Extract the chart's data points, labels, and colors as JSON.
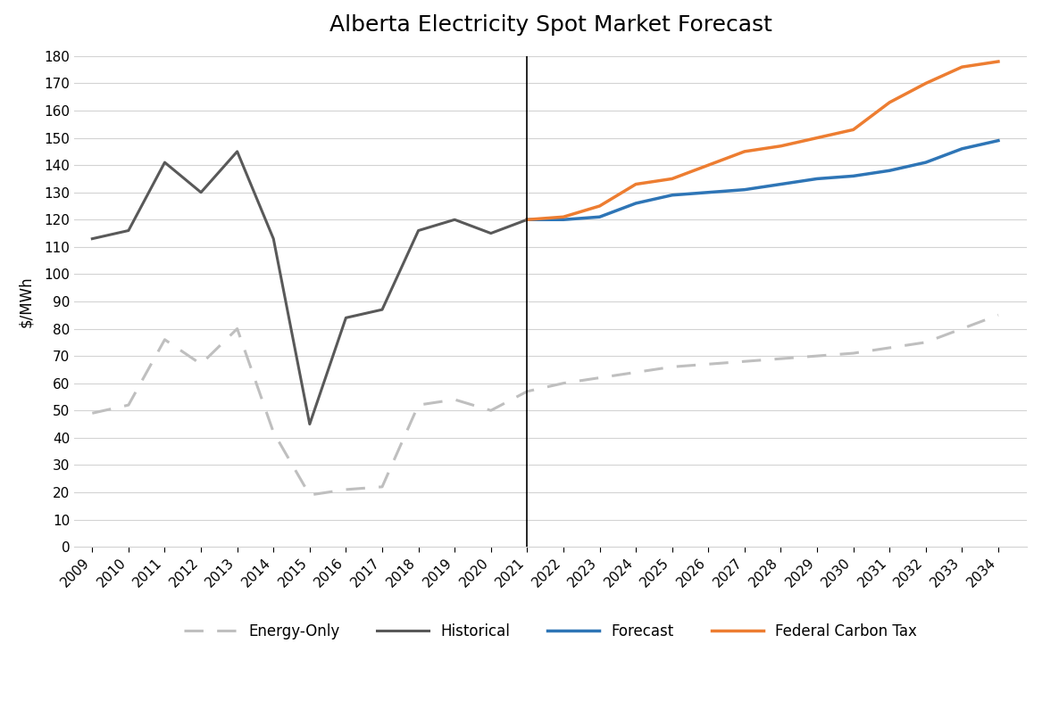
{
  "title": "Alberta Electricity Spot Market Forecast",
  "ylabel": "$/MWh",
  "ylim": [
    0,
    180
  ],
  "yticks": [
    0,
    10,
    20,
    30,
    40,
    50,
    60,
    70,
    80,
    90,
    100,
    110,
    120,
    130,
    140,
    150,
    160,
    170,
    180
  ],
  "vline_x": 2021,
  "historical_years": [
    2009,
    2010,
    2011,
    2012,
    2013,
    2014,
    2015,
    2016,
    2017,
    2018,
    2019,
    2020,
    2021
  ],
  "historical_values": [
    113,
    116,
    141,
    130,
    145,
    113,
    45,
    84,
    87,
    116,
    120,
    115,
    120
  ],
  "historical_color": "#595959",
  "energy_only_years": [
    2009,
    2010,
    2011,
    2012,
    2013,
    2014,
    2015,
    2016,
    2017,
    2018,
    2019,
    2020,
    2021,
    2022,
    2023,
    2024,
    2025,
    2026,
    2027,
    2028,
    2029,
    2030,
    2031,
    2032,
    2033,
    2034
  ],
  "energy_only_values": [
    49,
    52,
    76,
    67,
    80,
    42,
    19,
    21,
    22,
    52,
    54,
    50,
    57,
    60,
    62,
    64,
    66,
    67,
    68,
    69,
    70,
    71,
    73,
    75,
    80,
    85
  ],
  "energy_only_color": "#bfbfbf",
  "forecast_years": [
    2021,
    2022,
    2023,
    2024,
    2025,
    2026,
    2027,
    2028,
    2029,
    2030,
    2031,
    2032,
    2033,
    2034
  ],
  "forecast_values": [
    120,
    120,
    121,
    126,
    129,
    130,
    131,
    133,
    135,
    136,
    138,
    141,
    146,
    149
  ],
  "forecast_color": "#2E75B6",
  "carbon_tax_years": [
    2021,
    2022,
    2023,
    2024,
    2025,
    2026,
    2027,
    2028,
    2029,
    2030,
    2031,
    2032,
    2033,
    2034
  ],
  "carbon_tax_values": [
    120,
    121,
    125,
    133,
    135,
    140,
    145,
    147,
    150,
    153,
    163,
    170,
    176,
    178
  ],
  "carbon_tax_color": "#ED7D31",
  "legend_labels": [
    "Energy-Only",
    "Historical",
    "Forecast",
    "Federal Carbon Tax"
  ],
  "background_color": "#ffffff",
  "grid_color": "#d3d3d3",
  "title_fontsize": 18,
  "axis_fontsize": 12,
  "tick_fontsize": 11,
  "legend_fontsize": 12
}
